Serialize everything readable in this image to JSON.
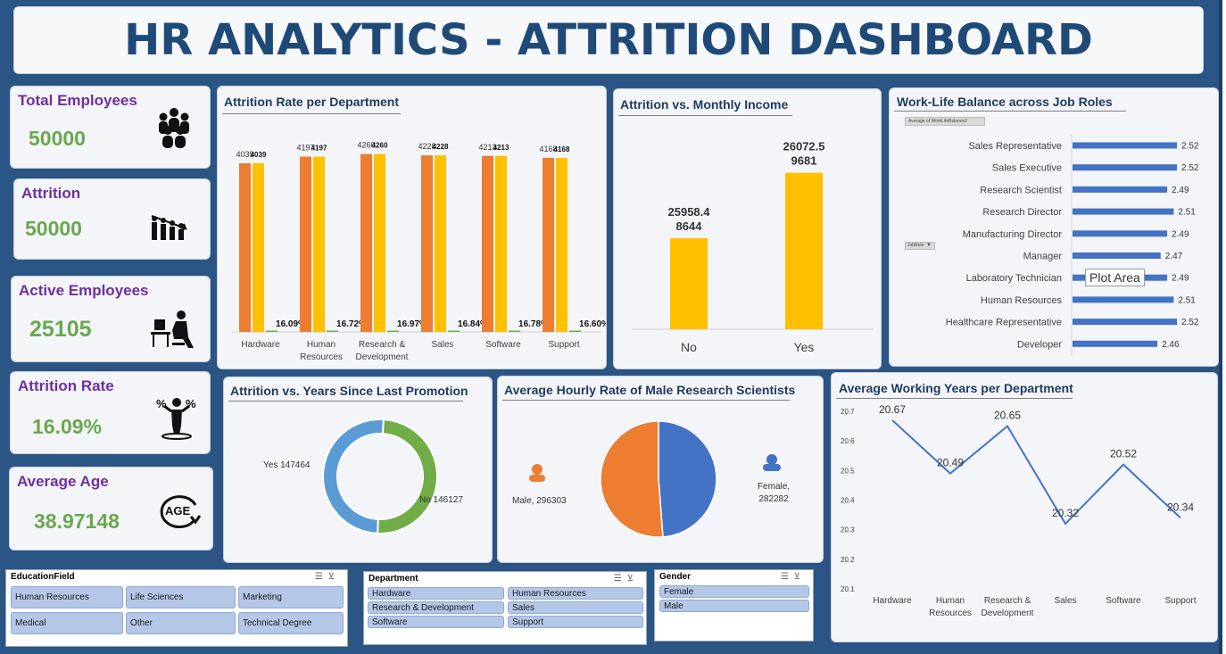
{
  "dashboard": {
    "title": "HR ANALYTICS - ATTRITION  DASHBOARD"
  },
  "kpis": [
    {
      "label": "Total Employees",
      "value": "50000",
      "icon": "people-group-icon"
    },
    {
      "label": "Attrition",
      "value": "50000",
      "icon": "decline-bar-icon"
    },
    {
      "label": "Active Employees",
      "value": "25105",
      "icon": "desk-worker-icon"
    },
    {
      "label": "Attrition Rate",
      "value": "16.09%",
      "icon": "percent-person-icon"
    },
    {
      "label": "Average Age",
      "value": "38.97148",
      "icon": "age-arrow-icon"
    }
  ],
  "colors": {
    "orange": "#ed7d31",
    "yellow": "#ffc000",
    "blue": "#4472c4",
    "lightblue": "#5b9bd5",
    "green": "#70ad47",
    "purple": "#6f2f9f",
    "kpigreen": "#6aa84f"
  },
  "dept_chart": {
    "title": "Attrition Rate per Department",
    "chart_data": {
      "type": "bar",
      "categories": [
        "Hardware",
        "Human Resources",
        "Research & Development",
        "Sales",
        "Software",
        "Support"
      ],
      "category_lines": [
        [
          "Hardware"
        ],
        [
          "Human",
          "Resources"
        ],
        [
          "Research &",
          "Development"
        ],
        [
          "Sales"
        ],
        [
          "Software"
        ],
        [
          "Support"
        ]
      ],
      "series": [
        {
          "values": [
            4039,
            4197,
            4260,
            4228,
            4213,
            4168
          ],
          "labels": [
            "4039",
            "4197",
            "4260",
            "4228",
            "4213",
            "4168"
          ]
        },
        {
          "values": [
            4039,
            4197,
            4260,
            4228,
            4213,
            4168
          ],
          "labels": [
            "4039",
            "4197",
            "4260",
            "4228",
            "4213",
            "4168"
          ]
        },
        {
          "values": [
            16.09,
            16.72,
            16.97,
            16.84,
            16.78,
            16.6
          ],
          "labels": [
            "16.09%",
            "16.72%",
            "16.97%",
            "16.84%",
            "16.78%",
            "16.60%"
          ]
        }
      ],
      "ylim": [
        0,
        4700
      ]
    }
  },
  "income_chart": {
    "title": "Attrition vs. Monthly Income",
    "chart_data": {
      "type": "bar",
      "categories": [
        "No",
        "Yes"
      ],
      "values": [
        25958.48644,
        26072.59681
      ],
      "label_lines": [
        [
          "25958.4",
          "8644"
        ],
        [
          "26072.5",
          "9681"
        ]
      ],
      "ylim": [
        25800,
        26100
      ]
    }
  },
  "wlb_chart": {
    "title": "Work-Life Balance across Job Roles",
    "field_button": "Average of WorkLifeBalance2",
    "axis_button": "JobRole",
    "tooltip": "Plot Area",
    "chart_data": {
      "type": "bar",
      "orientation": "horizontal",
      "categories": [
        "Sales Representative",
        "Sales Executive",
        "Research Scientist",
        "Research Director",
        "Manufacturing Director",
        "Manager",
        "Laboratory Technician",
        "Human Resources",
        "Healthcare Representative",
        "Developer"
      ],
      "values": [
        2.52,
        2.52,
        2.49,
        2.51,
        2.49,
        2.47,
        2.49,
        2.51,
        2.52,
        2.46
      ],
      "labels": [
        "2.52",
        "2.52",
        "2.49",
        "2.51",
        "2.49",
        "2.47",
        "2.49",
        "2.51",
        "2.52",
        "2.46"
      ],
      "xlim": [
        2.2,
        2.55
      ]
    }
  },
  "promotion_chart": {
    "title": "Attrition vs. Years Since Last Promotion",
    "chart_data": {
      "type": "pie",
      "donut": true,
      "categories": [
        "Yes",
        "No"
      ],
      "values": [
        147464,
        146127
      ],
      "labels": [
        "Yes 147464",
        "No 146127"
      ]
    }
  },
  "hourly_chart": {
    "title": "Average Hourly Rate of Male Research Scientists",
    "chart_data": {
      "type": "pie",
      "categories": [
        "Male",
        "Female"
      ],
      "values": [
        296303,
        282282
      ],
      "label_lines": [
        [
          "Male, 296303"
        ],
        [
          "Female,",
          "282282"
        ]
      ]
    }
  },
  "years_chart": {
    "title": "Average Working Years per Department",
    "chart_data": {
      "type": "line",
      "categories": [
        "Hardware",
        "Human Resources",
        "Research & Development",
        "Sales",
        "Software",
        "Support"
      ],
      "category_lines": [
        [
          "Hardware"
        ],
        [
          "Human",
          "Resources"
        ],
        [
          "Research &",
          "Development"
        ],
        [
          "Sales"
        ],
        [
          "Software"
        ],
        [
          "Support"
        ]
      ],
      "values": [
        20.67,
        20.49,
        20.65,
        20.32,
        20.52,
        20.34
      ],
      "labels": [
        "20.67",
        "20.49",
        "20.65",
        "20.32",
        "20.52",
        "20.34"
      ],
      "yticks": [
        "20.7",
        "20.6",
        "20.5",
        "20.4",
        "20.3",
        "20.2",
        "20.1"
      ],
      "ylim": [
        20.1,
        20.7
      ]
    }
  },
  "slicers": {
    "education": {
      "title": "EducationField",
      "items": [
        "Human Resources",
        "Life Sciences",
        "Marketing",
        "Medical",
        "Other",
        "Technical Degree"
      ]
    },
    "department": {
      "title": "Department",
      "items": [
        "Hardware",
        "Human Resources",
        "Research & Development",
        "Sales",
        "Software",
        "Support"
      ]
    },
    "gender": {
      "title": "Gender",
      "items": [
        "Female",
        "Male"
      ]
    }
  }
}
